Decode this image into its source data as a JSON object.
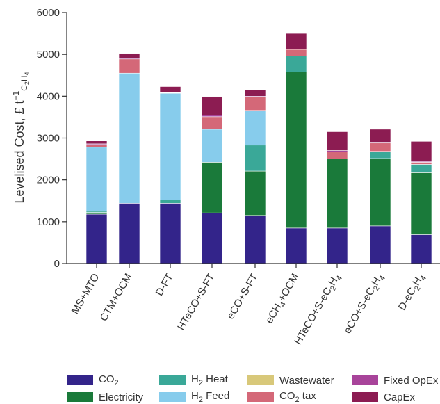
{
  "chart_data": {
    "type": "bar",
    "stacked": true,
    "title": "",
    "xlabel": "",
    "ylabel": "Levelised Cost, £ t",
    "ylabel_superscript": "−1",
    "ylabel_subscript": "C2H4",
    "ylim": [
      0,
      6000
    ],
    "yticks": [
      "0",
      "1000",
      "2000",
      "3000",
      "4000",
      "5000",
      "6000"
    ],
    "grid": false,
    "legend_position": "bottom",
    "categories": [
      "MS+MTO",
      "CTM+OCM",
      "D-FT",
      "HTeCO+S-FT",
      "eCO+S-FT",
      "eCH4+OCM",
      "HTeCO+S-eC2H4",
      "eCO+S-eC2H4",
      "D-eC2H4"
    ],
    "category_labels": [
      {
        "text": "MS+MTO"
      },
      {
        "text": "CTM+OCM"
      },
      {
        "text": "D-FT"
      },
      {
        "text": "HTeCO+S-FT"
      },
      {
        "text": "eCO+S-FT"
      },
      {
        "prefix": "eCH",
        "sub": "4",
        "suffix": "+OCM"
      },
      {
        "prefix": "HTeCO+S-eC",
        "sub": "2",
        "mid": "H",
        "sub2": "4"
      },
      {
        "prefix": "eCO+S-eC",
        "sub": "2",
        "mid": "H",
        "sub2": "4"
      },
      {
        "prefix": "D-eC",
        "sub": "2",
        "mid": "H",
        "sub2": "4"
      }
    ],
    "series": [
      {
        "name": "CO2",
        "color": "#33248a",
        "values": [
          1180,
          1440,
          1440,
          1210,
          1150,
          850,
          850,
          900,
          690
        ]
      },
      {
        "name": "Electricity",
        "color": "#1a7a3a",
        "values": [
          40,
          0,
          0,
          1210,
          1060,
          3730,
          1650,
          1610,
          1480
        ]
      },
      {
        "name": "H2 Heat",
        "color": "#3aa898",
        "values": [
          30,
          0,
          80,
          0,
          620,
          380,
          0,
          170,
          200
        ]
      },
      {
        "name": "H2 Feed",
        "color": "#87ccec",
        "values": [
          1530,
          3110,
          2550,
          790,
          830,
          0,
          0,
          0,
          0
        ]
      },
      {
        "name": "Wastewater",
        "color": "#d8c87a",
        "values": [
          0,
          0,
          0,
          0,
          0,
          0,
          0,
          0,
          0
        ]
      },
      {
        "name": "CO2 tax",
        "color": "#d46878",
        "values": [
          60,
          340,
          10,
          300,
          320,
          160,
          170,
          200,
          50
        ]
      },
      {
        "name": "Fixed OpEx",
        "color": "#a8449a",
        "values": [
          20,
          20,
          10,
          40,
          20,
          10,
          30,
          20,
          20
        ]
      },
      {
        "name": "CapEx",
        "color": "#8c1c52",
        "values": [
          70,
          110,
          140,
          440,
          160,
          370,
          450,
          310,
          480
        ]
      }
    ]
  },
  "legend": [
    {
      "name": "CO2",
      "prefix": "CO",
      "sub": "2",
      "suffix": "",
      "color": "#33248a"
    },
    {
      "name": "H2 Heat",
      "prefix": "H",
      "sub": "2",
      "suffix": " Heat",
      "color": "#3aa898"
    },
    {
      "name": "Wastewater",
      "prefix": "Wastewater",
      "sub": "",
      "suffix": "",
      "color": "#d8c87a"
    },
    {
      "name": "Fixed OpEx",
      "prefix": "Fixed OpEx",
      "sub": "",
      "suffix": "",
      "color": "#a8449a"
    },
    {
      "name": "Electricity",
      "prefix": "Electricity",
      "sub": "",
      "suffix": "",
      "color": "#1a7a3a"
    },
    {
      "name": "H2 Feed",
      "prefix": "H",
      "sub": "2",
      "suffix": " Feed",
      "color": "#87ccec"
    },
    {
      "name": "CO2 tax",
      "prefix": "CO",
      "sub": "2",
      "suffix": " tax",
      "color": "#d46878"
    },
    {
      "name": "CapEx",
      "prefix": "CapEx",
      "sub": "",
      "suffix": "",
      "color": "#8c1c52"
    }
  ]
}
